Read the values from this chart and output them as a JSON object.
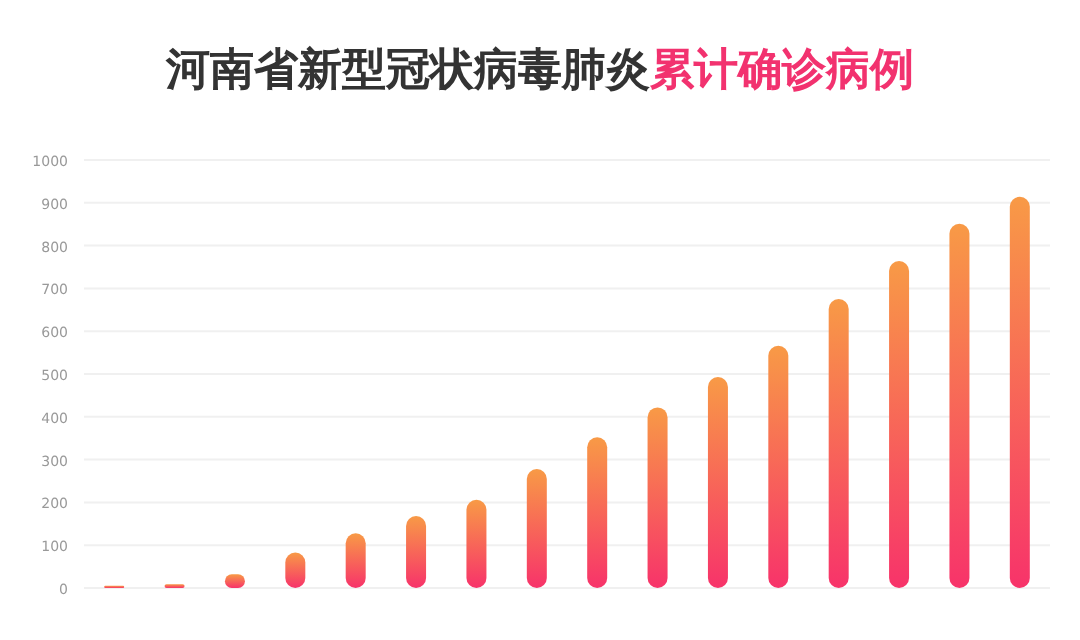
{
  "chart_data": {
    "type": "bar",
    "title": "河南省新型冠状病毒肺炎**累计确诊病例**",
    "categories": [
      null,
      null,
      null,
      null,
      null,
      null,
      null,
      null,
      null,
      null,
      null,
      null,
      null,
      null,
      null,
      null
    ],
    "values": [
      5,
      9,
      32,
      83,
      128,
      168,
      206,
      278,
      352,
      422,
      493,
      566,
      675,
      764,
      851,
      914
    ],
    "color": "#f7336a",
    "ylim": [
      0,
      1000
    ],
    "yticks": [
      0,
      100,
      200,
      300,
      400,
      500,
      600,
      700,
      800,
      900,
      1000
    ],
    "grid": "y"
  }
}
